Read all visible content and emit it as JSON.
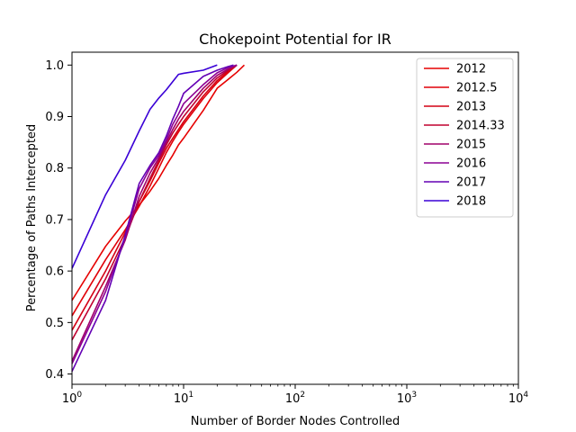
{
  "chart_data": {
    "type": "line",
    "title": "Chokepoint Potential for IR",
    "xlabel": "Number of Border Nodes Controlled",
    "ylabel": "Percentage of Paths Intercepted",
    "xscale": "log",
    "xlim": [
      1,
      10000
    ],
    "ylim": [
      0.38,
      1.025
    ],
    "xticks": [
      {
        "base": "10",
        "exp": "0",
        "value": 1
      },
      {
        "base": "10",
        "exp": "1",
        "value": 10
      },
      {
        "base": "10",
        "exp": "2",
        "value": 100
      },
      {
        "base": "10",
        "exp": "3",
        "value": 1000
      },
      {
        "base": "10",
        "exp": "4",
        "value": 10000
      }
    ],
    "yticks": [
      {
        "label": "0.4",
        "value": 0.4
      },
      {
        "label": "0.5",
        "value": 0.5
      },
      {
        "label": "0.6",
        "value": 0.6
      },
      {
        "label": "0.7",
        "value": 0.7
      },
      {
        "label": "0.8",
        "value": 0.8
      },
      {
        "label": "0.9",
        "value": 0.9
      },
      {
        "label": "1.0",
        "value": 1.0
      }
    ],
    "grid": false,
    "legend_position": "top-right",
    "series": [
      {
        "name": "2012",
        "color": "#e60000",
        "x": [
          1,
          2,
          3,
          4,
          5,
          6,
          7,
          8,
          9,
          10,
          15,
          20,
          25,
          30,
          35
        ],
        "y": [
          0.543,
          0.648,
          0.697,
          0.728,
          0.755,
          0.78,
          0.805,
          0.825,
          0.845,
          0.858,
          0.912,
          0.955,
          0.972,
          0.986,
          1.0
        ]
      },
      {
        "name": "2012.5",
        "color": "#e00008",
        "x": [
          1,
          2,
          3,
          4,
          5,
          6,
          7,
          8,
          9,
          10,
          15,
          20,
          25,
          30
        ],
        "y": [
          0.513,
          0.622,
          0.68,
          0.726,
          0.765,
          0.8,
          0.83,
          0.852,
          0.87,
          0.885,
          0.935,
          0.966,
          0.985,
          1.0
        ]
      },
      {
        "name": "2013",
        "color": "#d40014",
        "x": [
          1,
          2,
          3,
          4,
          5,
          6,
          7,
          8,
          9,
          10,
          15,
          20,
          25,
          30
        ],
        "y": [
          0.485,
          0.6,
          0.675,
          0.735,
          0.775,
          0.81,
          0.838,
          0.858,
          0.875,
          0.89,
          0.94,
          0.97,
          0.988,
          1.0
        ]
      },
      {
        "name": "2014.33",
        "color": "#c0002f",
        "x": [
          1,
          2,
          3,
          4,
          5,
          6,
          7,
          8,
          9,
          10,
          15,
          20,
          25,
          30
        ],
        "y": [
          0.466,
          0.585,
          0.665,
          0.735,
          0.78,
          0.815,
          0.845,
          0.868,
          0.885,
          0.9,
          0.948,
          0.975,
          0.99,
          1.0
        ]
      },
      {
        "name": "2015",
        "color": "#a0006a",
        "x": [
          1,
          2,
          3,
          4,
          5,
          6,
          7,
          8,
          9,
          10,
          15,
          20,
          25,
          30
        ],
        "y": [
          0.425,
          0.57,
          0.66,
          0.745,
          0.79,
          0.82,
          0.85,
          0.875,
          0.895,
          0.91,
          0.955,
          0.98,
          0.992,
          1.0
        ]
      },
      {
        "name": "2016",
        "color": "#8c0094",
        "x": [
          1,
          2,
          3,
          4,
          5,
          6,
          7,
          8,
          9,
          10,
          15,
          20,
          25,
          30
        ],
        "y": [
          0.42,
          0.56,
          0.665,
          0.76,
          0.8,
          0.825,
          0.855,
          0.885,
          0.905,
          0.925,
          0.962,
          0.985,
          0.995,
          1.0
        ]
      },
      {
        "name": "2017",
        "color": "#6400b4",
        "x": [
          1,
          2,
          3,
          4,
          5,
          6,
          7,
          8,
          9,
          10,
          15,
          20,
          25,
          28
        ],
        "y": [
          0.405,
          0.543,
          0.67,
          0.77,
          0.805,
          0.83,
          0.862,
          0.895,
          0.92,
          0.945,
          0.978,
          0.99,
          0.997,
          1.0
        ]
      },
      {
        "name": "2018",
        "color": "#3a00d6",
        "x": [
          1,
          2,
          3,
          4,
          5,
          6,
          7,
          8,
          9,
          10,
          15,
          20
        ],
        "y": [
          0.605,
          0.748,
          0.815,
          0.872,
          0.914,
          0.936,
          0.952,
          0.968,
          0.982,
          0.984,
          0.99,
          1.0
        ]
      }
    ]
  }
}
